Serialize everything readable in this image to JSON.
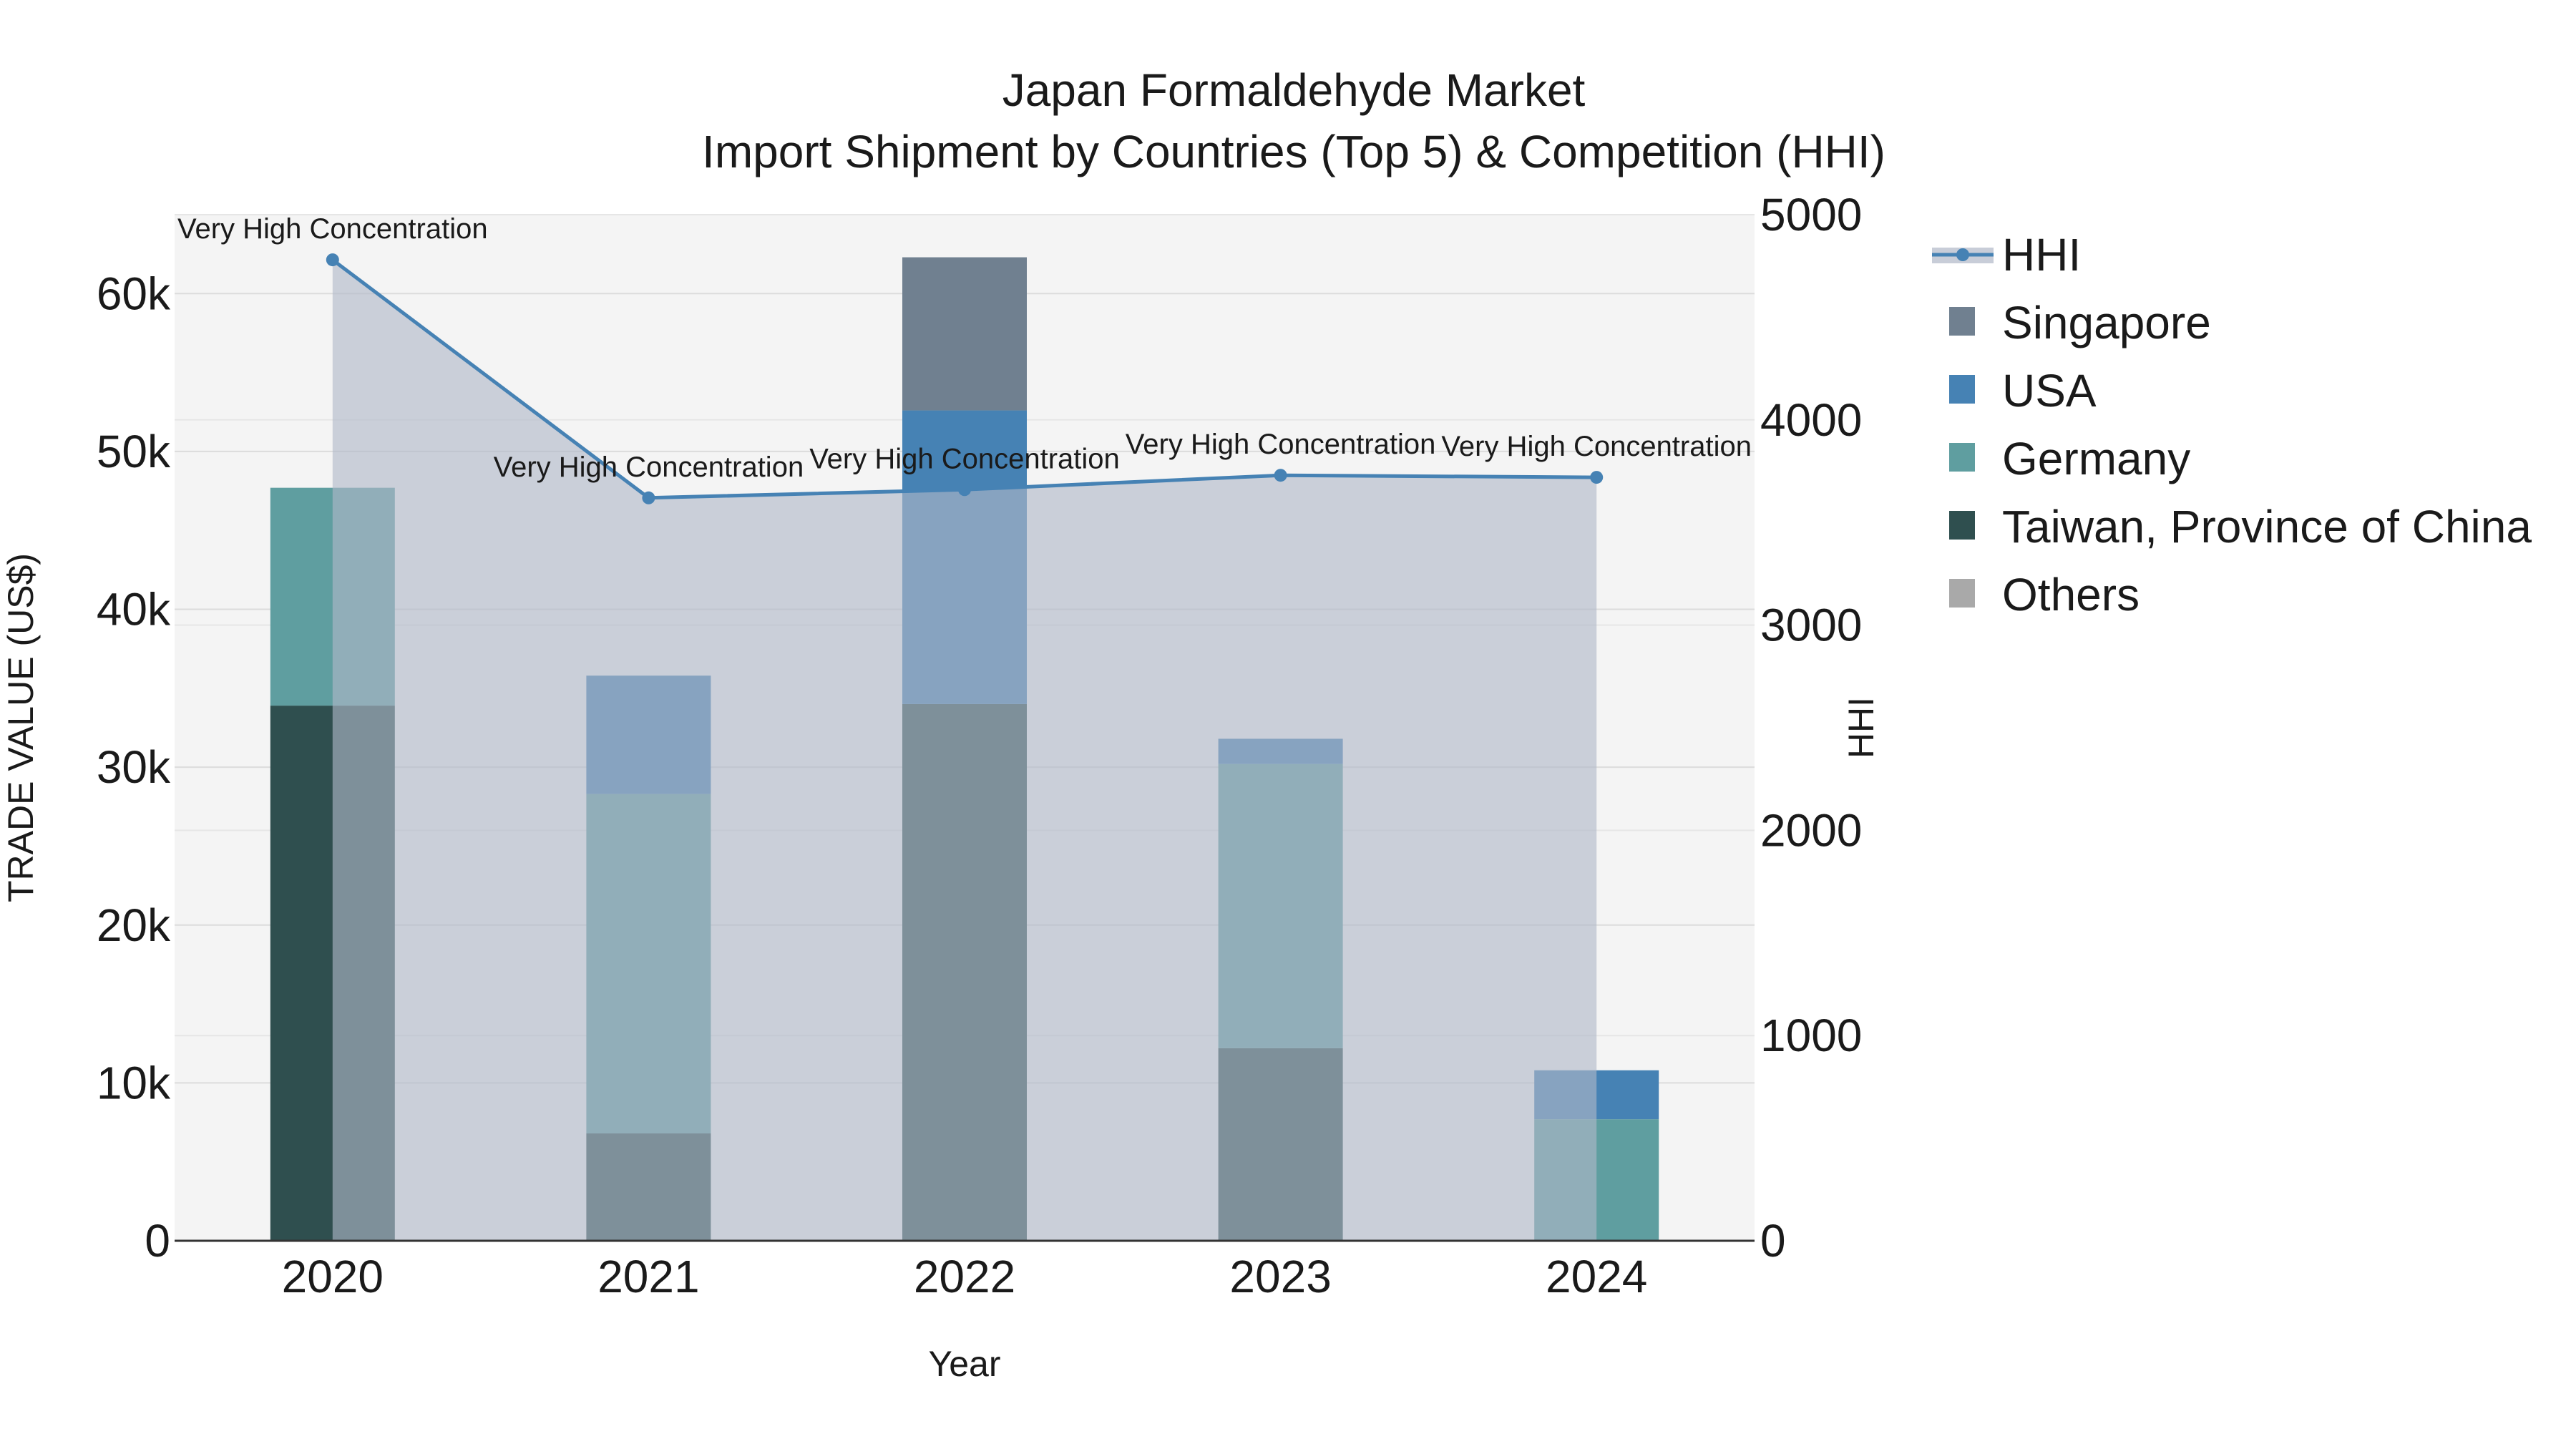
{
  "chart_data": {
    "type": "bar",
    "title": "Japan Formaldehyde Market",
    "subtitle": "Import Shipment by Countries (Top 5) & Competition (HHI)",
    "xlabel": "Year",
    "ylabel": "TRADE VALUE (US$)",
    "y2label": "HHI",
    "categories": [
      "2020",
      "2021",
      "2022",
      "2023",
      "2024"
    ],
    "ylim": [
      0,
      65000
    ],
    "y2lim": [
      0,
      5000
    ],
    "y_ticks": [
      0,
      10000,
      20000,
      30000,
      40000,
      50000,
      60000
    ],
    "y_tick_labels": [
      "0",
      "10k",
      "20k",
      "30k",
      "40k",
      "50k",
      "60k"
    ],
    "y2_ticks": [
      0,
      1000,
      2000,
      3000,
      4000,
      5000
    ],
    "y2_tick_labels": [
      "0",
      "1000",
      "2000",
      "3000",
      "4000",
      "5000"
    ],
    "series": [
      {
        "name": "Taiwan, Province of China",
        "color": "#2f4f4f",
        "values": [
          33900,
          6800,
          34000,
          12200,
          0
        ]
      },
      {
        "name": "Germany",
        "color": "#5f9ea0",
        "values": [
          13800,
          21500,
          0,
          18000,
          7700
        ]
      },
      {
        "name": "USA",
        "color": "#4682b4",
        "values": [
          0,
          7500,
          18600,
          1600,
          3100
        ]
      },
      {
        "name": "Singapore",
        "color": "#708090",
        "values": [
          0,
          0,
          9700,
          0,
          0
        ]
      },
      {
        "name": "Others",
        "color": "#a9a9a9",
        "values": [
          0,
          0,
          0,
          0,
          0
        ]
      }
    ],
    "hhi": {
      "name": "HHI",
      "color": "#4682b4",
      "fill_color": "#b0b8c8",
      "values": [
        4780,
        3620,
        3660,
        3730,
        3720
      ],
      "labels": [
        "Very High Concentration",
        "Very High Concentration",
        "Very High Concentration",
        "Very High Concentration",
        "Very High Concentration"
      ]
    },
    "legend": [
      "HHI",
      "Singapore",
      "USA",
      "Germany",
      "Taiwan, Province of China",
      "Others"
    ],
    "grid": true,
    "legend_position": "top-right"
  }
}
